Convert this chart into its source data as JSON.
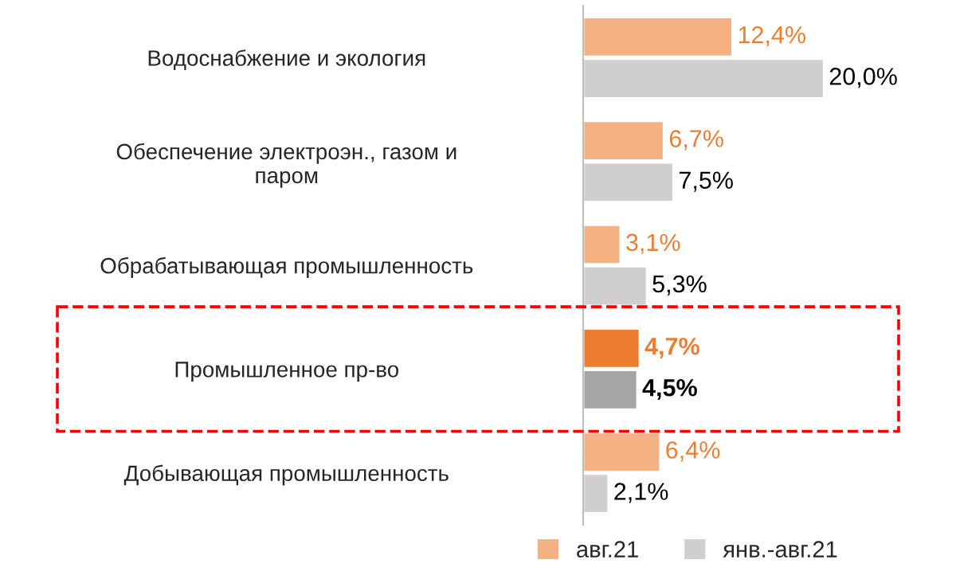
{
  "chart_data": {
    "type": "bar",
    "orientation": "horizontal",
    "categories": [
      "Водоснабжение и экология",
      "Обеспечение электроэн., газом и\nпаром",
      "Обрабатывающая промышленность",
      "Промышленное пр-во",
      "Добывающая промышленность"
    ],
    "series": [
      {
        "name": "авг.21",
        "color": "#f4b183",
        "colors": [
          "#f4b183",
          "#f4b183",
          "#f4b183",
          "#ed7d31",
          "#f4b183"
        ],
        "values": [
          12.4,
          6.7,
          3.1,
          4.7,
          6.4
        ],
        "value_labels": [
          "12,4%",
          "6,7%",
          "3,1%",
          "4,7%",
          "6,4%"
        ]
      },
      {
        "name": "янв.-авг.21",
        "color": "#d0cece",
        "colors": [
          "#d0cece",
          "#d0cece",
          "#d0cece",
          "#a5a5a5",
          "#d0cece"
        ],
        "values": [
          20.0,
          7.5,
          5.3,
          4.5,
          2.1
        ],
        "value_labels": [
          "20,0%",
          "7,5%",
          "5,3%",
          "4,5%",
          "2,1%"
        ]
      }
    ],
    "tick_labels": "y",
    "legend": "bottom",
    "grid": false
  }
}
